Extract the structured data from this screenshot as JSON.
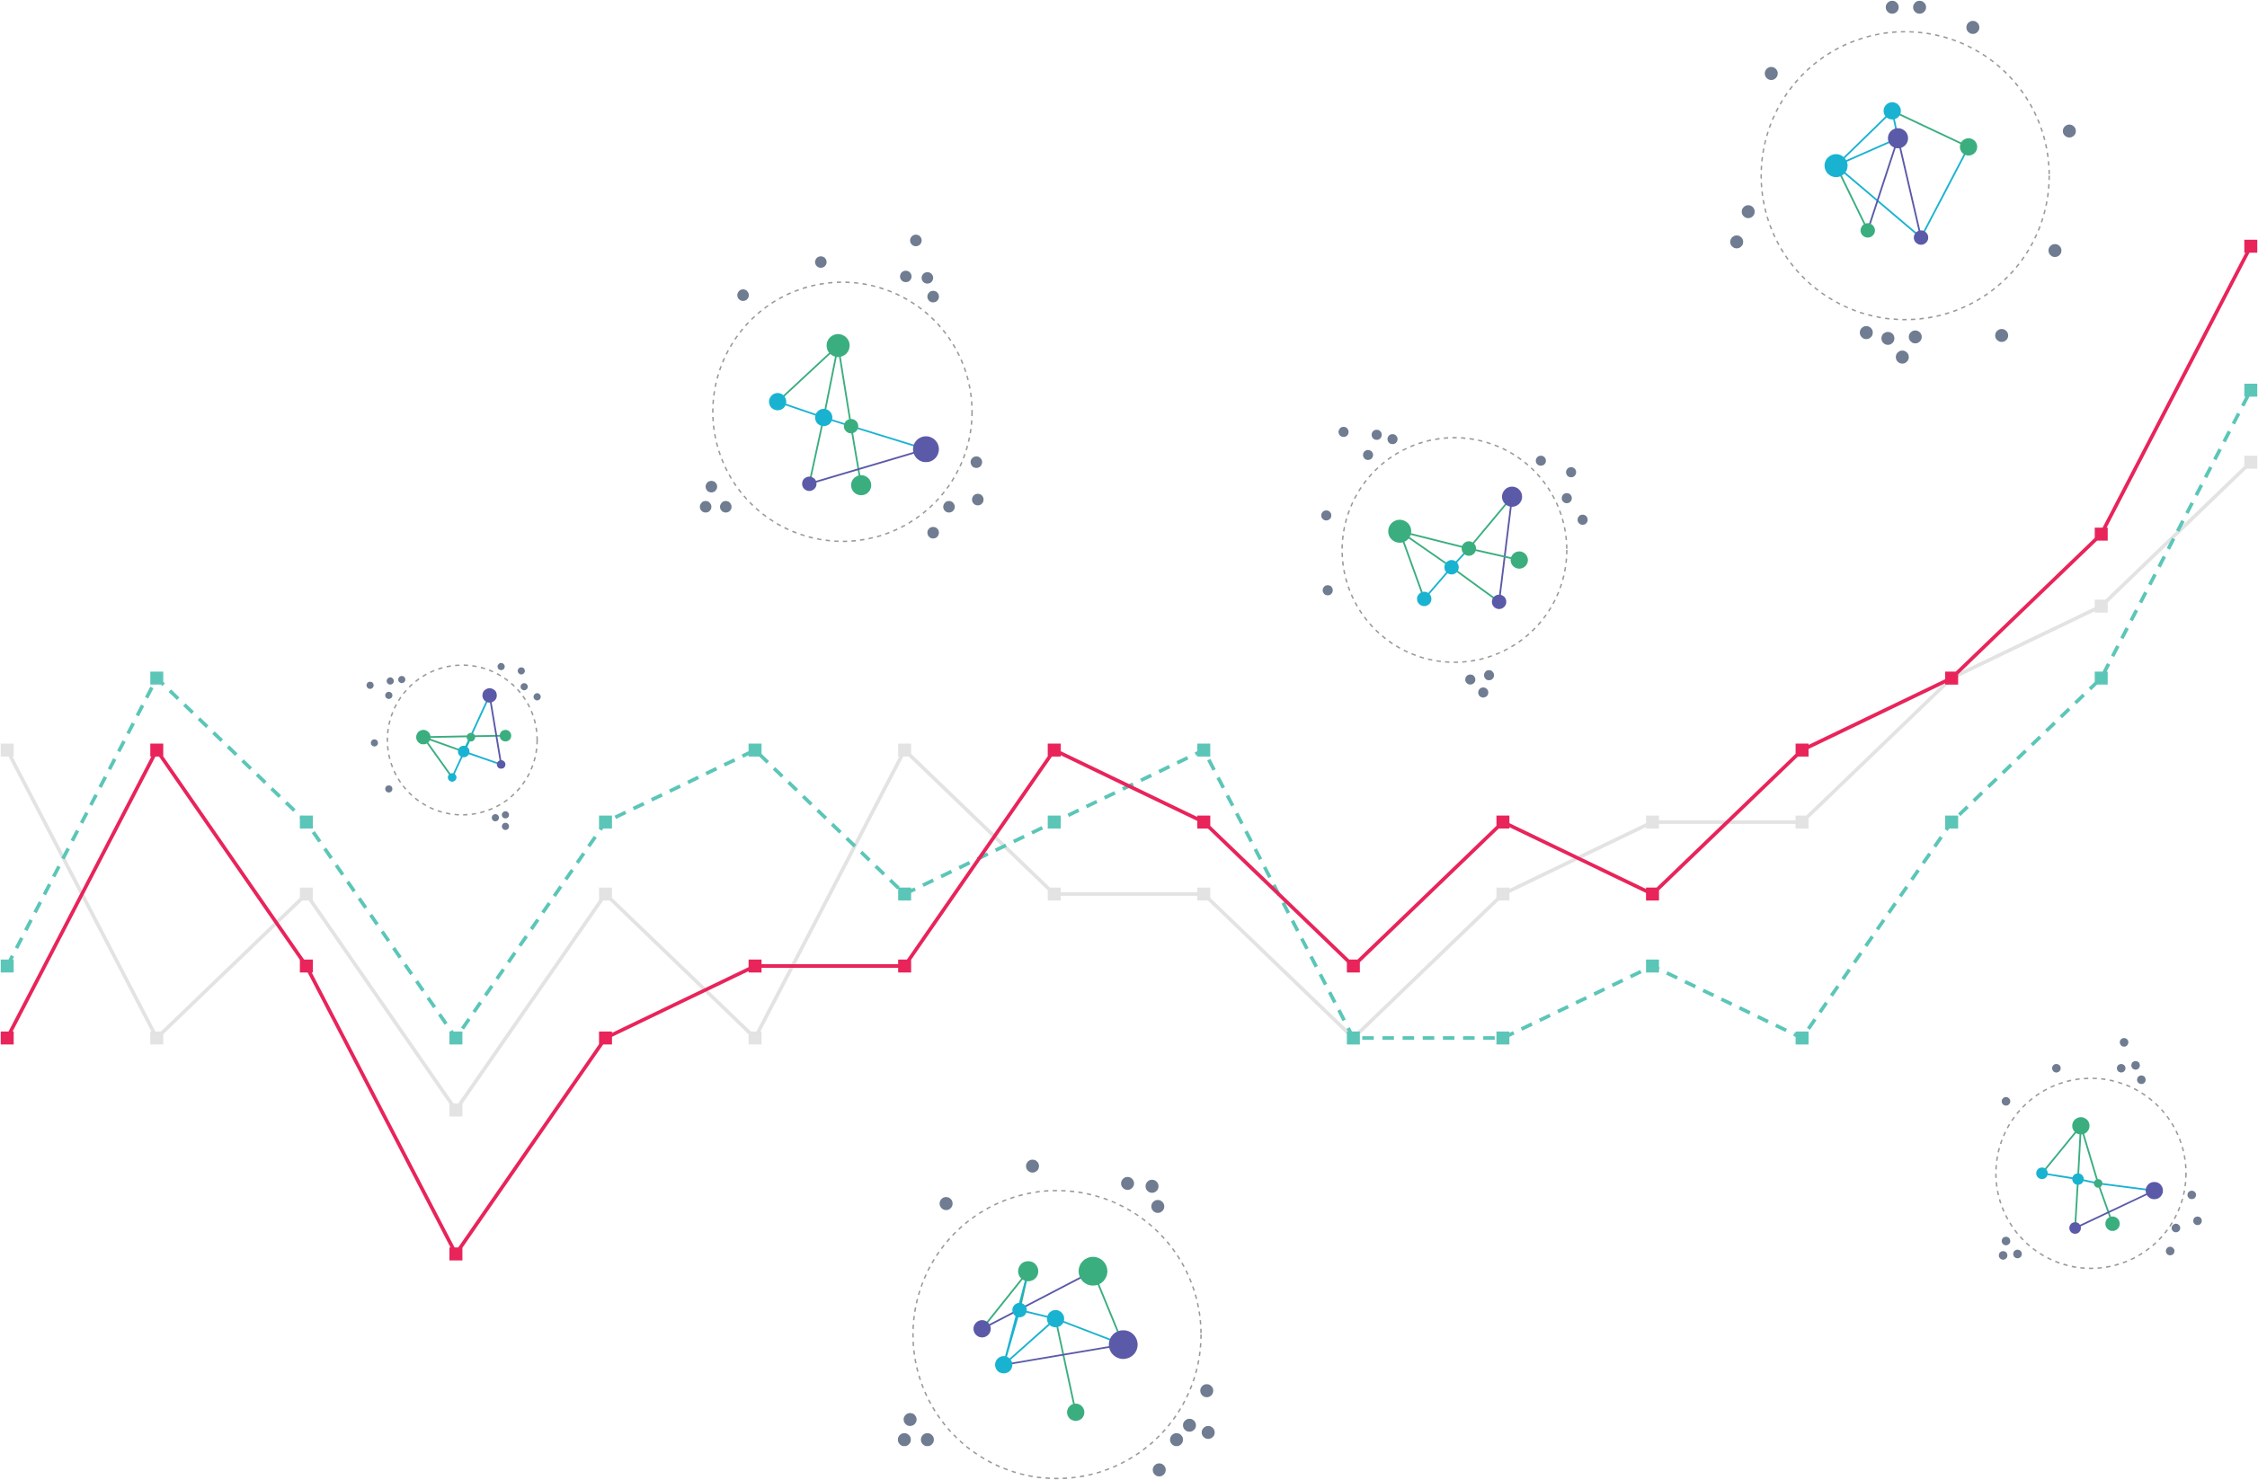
{
  "chart_data": {
    "type": "line",
    "series": [
      {
        "color": "#e3e3e3",
        "style": "solid",
        "values": [
          7,
          3,
          5,
          2,
          5,
          3,
          7,
          5,
          5,
          3,
          5,
          6,
          6,
          8,
          9,
          11
        ]
      },
      {
        "color": "#5bc6b8",
        "style": "dashed",
        "values": [
          4,
          8,
          6,
          3,
          6,
          7,
          5,
          6,
          7,
          3,
          3,
          4,
          3,
          6,
          8,
          12
        ]
      },
      {
        "color": "#e8245a",
        "style": "solid",
        "values": [
          3,
          7,
          4,
          0,
          3,
          4,
          4,
          7,
          6,
          4,
          6,
          5,
          7,
          8,
          10,
          14
        ]
      }
    ],
    "ylim": [
      0,
      14
    ]
  }
}
